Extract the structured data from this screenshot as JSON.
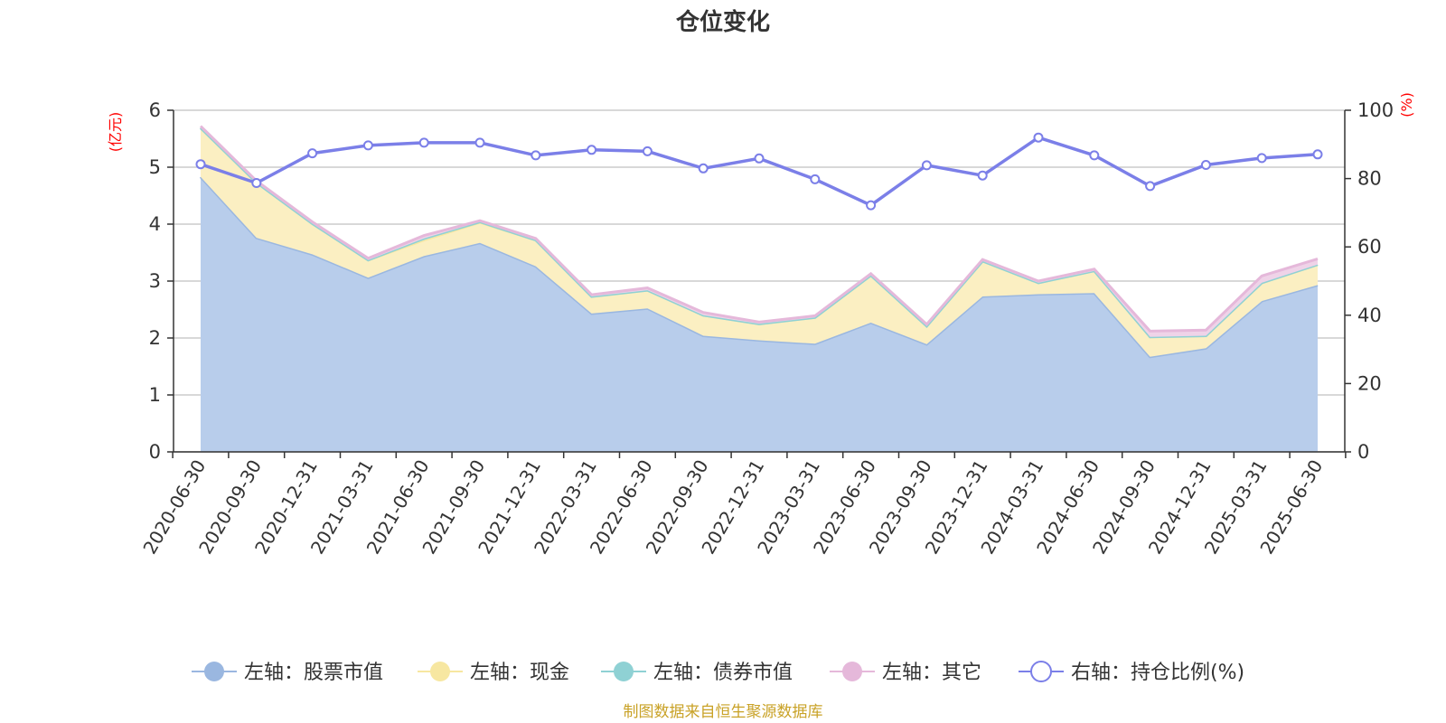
{
  "chart_data": {
    "type": "area",
    "title": "仓位变化",
    "left_axis_unit": "(亿元)",
    "right_axis_unit": "(%)",
    "left_ylim": [
      0,
      6
    ],
    "left_ticks": [
      "0",
      "1",
      "2",
      "3",
      "4",
      "5",
      "6"
    ],
    "right_ylim": [
      0,
      100
    ],
    "right_ticks": [
      "0",
      "20",
      "40",
      "60",
      "80",
      "100"
    ],
    "grid": true,
    "legend_position": "bottom",
    "x": [
      "2020-06-30",
      "2020-09-30",
      "2020-12-31",
      "2021-03-31",
      "2021-06-30",
      "2021-09-30",
      "2021-12-31",
      "2022-03-31",
      "2022-06-30",
      "2022-09-30",
      "2022-12-31",
      "2023-03-31",
      "2023-06-30",
      "2023-09-30",
      "2023-12-31",
      "2024-03-31",
      "2024-06-30",
      "2024-09-30",
      "2024-12-31",
      "2025-03-31",
      "2025-06-30"
    ],
    "stack": [
      "股票市值",
      "现金",
      "债券市值",
      "其它"
    ],
    "series": [
      {
        "key": "stock",
        "name": "左轴：股票市值",
        "axis": "left",
        "kind": "stacked-area",
        "color": "#9ab7e0",
        "fill": "#b8cdeb",
        "values": [
          4.83,
          3.76,
          3.47,
          3.06,
          3.44,
          3.67,
          3.26,
          2.43,
          2.52,
          2.04,
          1.96,
          1.9,
          2.27,
          1.89,
          2.73,
          2.77,
          2.79,
          1.67,
          1.82,
          2.65,
          2.93
        ]
      },
      {
        "key": "cash",
        "name": "左轴：现金",
        "axis": "left",
        "kind": "stacked-area",
        "color": "#f7e7a1",
        "fill": "#fbefc2",
        "values": [
          0.86,
          0.97,
          0.54,
          0.31,
          0.28,
          0.36,
          0.46,
          0.3,
          0.32,
          0.36,
          0.29,
          0.46,
          0.83,
          0.32,
          0.62,
          0.2,
          0.39,
          0.35,
          0.22,
          0.32,
          0.36
        ]
      },
      {
        "key": "bond",
        "name": "左轴：债券市值",
        "axis": "left",
        "kind": "stacked-area",
        "color": "#8fd1d4",
        "fill": "#bfe6e8",
        "values": [
          0,
          0,
          0,
          0,
          0.03,
          0.01,
          0,
          0,
          0,
          0,
          0,
          0,
          0,
          0,
          0,
          0,
          0,
          0,
          0,
          0,
          0
        ]
      },
      {
        "key": "other",
        "name": "左轴：其它",
        "axis": "left",
        "kind": "stacked-area",
        "color": "#e5b8da",
        "fill": "#efd3e8",
        "values": [
          0.03,
          0.03,
          0.03,
          0.03,
          0.05,
          0.02,
          0.03,
          0.03,
          0.04,
          0.05,
          0.03,
          0.03,
          0.03,
          0.03,
          0.03,
          0.03,
          0.03,
          0.1,
          0.1,
          0.12,
          0.1
        ]
      },
      {
        "key": "ratio",
        "name": "右轴：持仓比例(%)",
        "axis": "right",
        "kind": "line",
        "color": "#7b7fe8",
        "values": [
          84.2,
          78.7,
          87.4,
          89.7,
          90.5,
          90.5,
          86.8,
          88.4,
          88.0,
          83.0,
          85.9,
          79.8,
          72.2,
          83.9,
          80.9,
          92.0,
          86.8,
          77.8,
          84.0,
          86.0,
          87.1
        ]
      }
    ],
    "source_note": "制图数据来自恒生聚源数据库"
  }
}
